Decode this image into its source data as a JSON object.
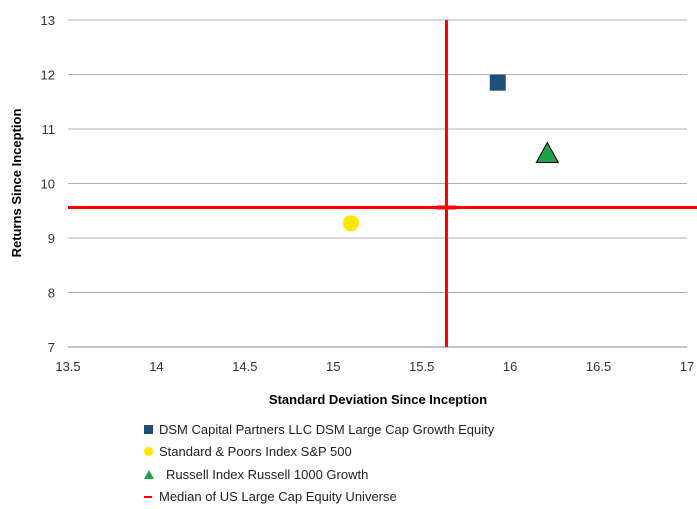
{
  "chart_data": {
    "type": "scatter",
    "title": "",
    "xlabel": "Standard Deviation Since Inception",
    "ylabel": "Returns Since Inception",
    "xlim": [
      13.5,
      17
    ],
    "ylim": [
      7,
      13
    ],
    "x_ticks": [
      "13.5",
      "14",
      "14.5",
      "15",
      "15.5",
      "16",
      "16.5",
      "17"
    ],
    "y_ticks": [
      "7",
      "8",
      "9",
      "10",
      "11",
      "12",
      "13"
    ],
    "grid": "horizontal",
    "legend_position": "bottom",
    "series": [
      {
        "name": "DSM Capital Partners LLC DSM Large Cap Growth Equity",
        "marker": "square",
        "color": "#1f4e79",
        "x": 15.93,
        "y": 11.85
      },
      {
        "name": "Standard & Poors Index S&P 500",
        "marker": "circle",
        "color": "#ffe600",
        "x": 15.1,
        "y": 9.27
      },
      {
        "name": "Russell Index Russell 1000 Growth",
        "marker": "triangle",
        "color": "#1fa34a",
        "x": 16.21,
        "y": 10.55
      },
      {
        "name": "Median of US Large Cap Equity Universe",
        "marker": "cross-lines",
        "color": "#ff0000",
        "x": 15.64,
        "y": 9.56
      }
    ]
  }
}
